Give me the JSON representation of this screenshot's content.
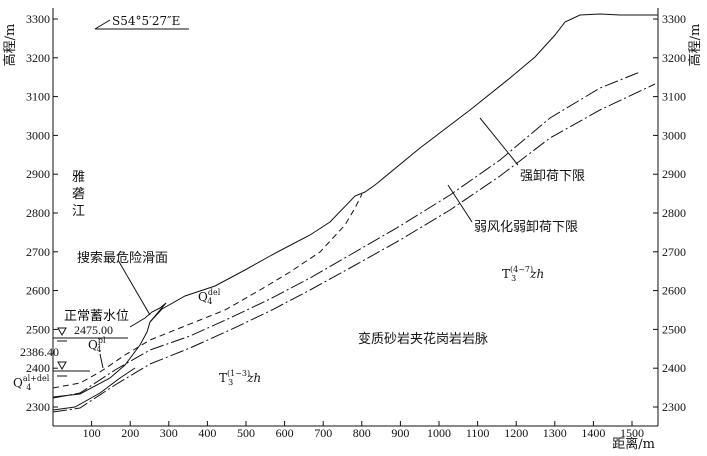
{
  "x_axis": {
    "label": "距离/m",
    "ticks": [
      "100",
      "200",
      "300",
      "400",
      "500",
      "600",
      "700",
      "800",
      "900",
      "1000",
      "1100",
      "1200",
      "1300",
      "1400",
      "1500"
    ]
  },
  "y_axis": {
    "label_left": "高程/m",
    "label_right": "高程/m",
    "ticks": [
      "2300",
      "2400",
      "2500",
      "2600",
      "2700",
      "2800",
      "2900",
      "3000",
      "3100",
      "3200",
      "3300"
    ]
  },
  "bearing": "S54°5′27″E",
  "labels": {
    "river": "雅砻江",
    "slip_surface": "搜索最危险滑面",
    "normal_water_level": "正常蓄水位",
    "water_level_value": "2475.00",
    "water_level_low": "2386.40",
    "strong_unloading": "强卸荷下限",
    "weak_weathering": "弱风化弱卸荷下限",
    "bedrock": "变质砂岩夹花岗岩岩脉",
    "q4_del": "Q",
    "q4_del_sub": "4",
    "q4_del_sup": "del",
    "q4_pl": "Q",
    "q4_pl_sub": "4",
    "q4_pl_sup": "pl",
    "q4_alluvial": "Q",
    "q4_alluvial_sub": "4",
    "q4_alluvial_sup": "al+del",
    "t3_upper": "T",
    "t3_upper_sub": "3",
    "t3_upper_sup": "(4~7)",
    "t3_upper_suffix": "zh",
    "t3_lower": "T",
    "t3_lower_sub": "3",
    "t3_lower_sup": "(1~3)",
    "t3_lower_suffix": "zh"
  },
  "colors": {
    "line": "#111111",
    "background": "#ffffff"
  }
}
